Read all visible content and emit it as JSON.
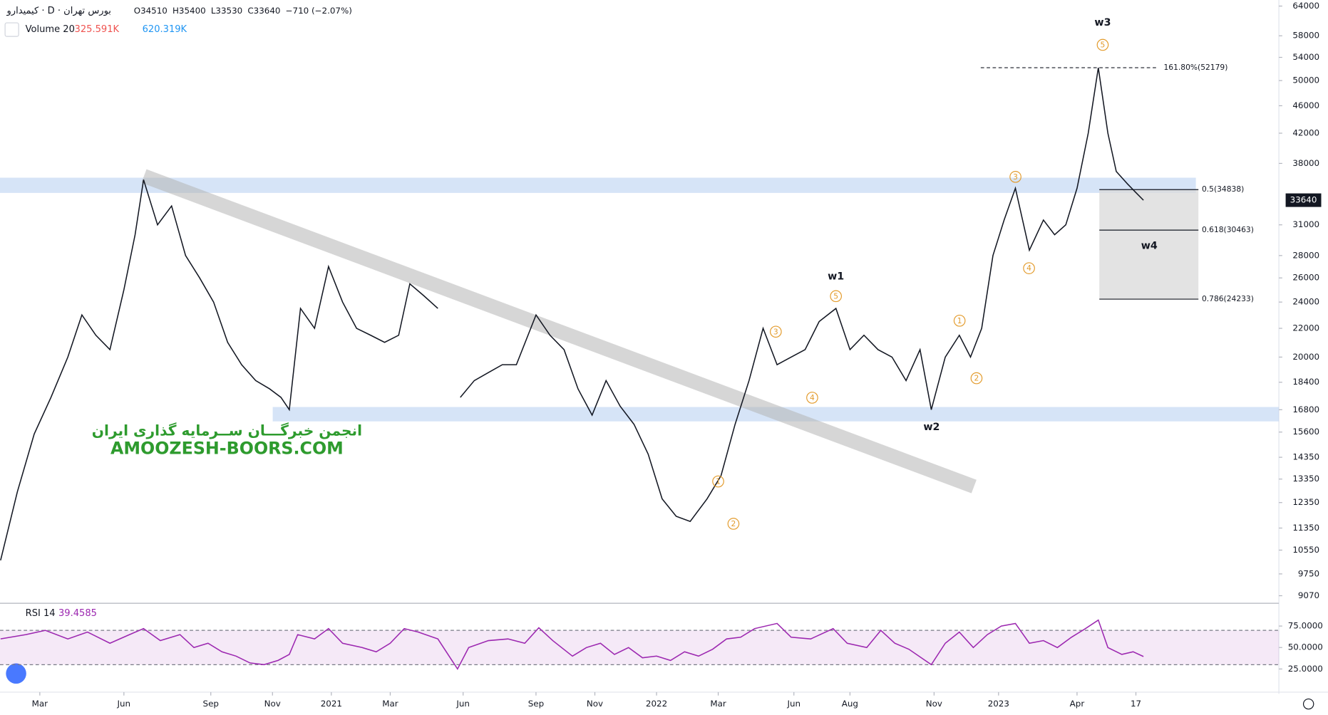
{
  "header": {
    "symbol": "کیمیدارو · D · بورس تهران",
    "ohlc": [
      "O34510",
      "H35400",
      "L33530",
      "C33640",
      "−710 (−2.07%)"
    ],
    "volume_label": "Volume 20",
    "volume_values": [
      "325.591K",
      "620.319K"
    ],
    "watermark": [
      "انجمن خبرگـــان ســرمایه گذاری ایران",
      "AMOOZESH-BOORS.COM"
    ]
  },
  "chart_data": [
    {
      "type": "line",
      "log_scale": true,
      "color": "#131722",
      "grid": false,
      "x": [
        0.6,
        1.2,
        1.8,
        2.4,
        3.0,
        3.5,
        4.0,
        4.5,
        5.0,
        5.4,
        5.7,
        6.2,
        6.7,
        7.2,
        7.7,
        8.2,
        8.7,
        9.2,
        9.7,
        10.2,
        10.6,
        10.9,
        11.3,
        11.8,
        12.3,
        12.8,
        13.3,
        13.8,
        14.3,
        14.8,
        15.2,
        15.7,
        16.2,
        16.6,
        17.0,
        17.5,
        18.0,
        18.5,
        19.0,
        19.7,
        20.2,
        20.7,
        21.2,
        21.7,
        22.2,
        22.7,
        23.2,
        23.7,
        24.2,
        24.7,
        25.2,
        25.8,
        26.3,
        26.8,
        27.3,
        27.8,
        28.3,
        28.8,
        29.3,
        29.8,
        30.4,
        30.9,
        31.4,
        31.9,
        32.4,
        32.9,
        33.4,
        33.8,
        34.3,
        34.8,
        35.2,
        35.6,
        36.0,
        36.4,
        36.8,
        37.3,
        37.8,
        38.2,
        38.6,
        39.0,
        39.4,
        39.76,
        40.1,
        40.4,
        40.8,
        41.1,
        41.37
      ],
      "values": [
        10200,
        12800,
        15500,
        17500,
        20000,
        23000,
        21500,
        20500,
        25000,
        30000,
        36000,
        31000,
        33000,
        28000,
        26000,
        24000,
        21000,
        19500,
        18500,
        18000,
        17500,
        16800,
        23500,
        22000,
        27000,
        24000,
        22000,
        21500,
        21000,
        21500,
        25500,
        24500,
        23500,
        null,
        17500,
        18500,
        19000,
        19500,
        19500,
        23000,
        21500,
        20500,
        18000,
        16500,
        18500,
        17000,
        16000,
        14500,
        12500,
        11800,
        11600,
        12500,
        13500,
        16000,
        18500,
        22000,
        19500,
        20000,
        20500,
        22500,
        23500,
        20500,
        21500,
        20500,
        20000,
        18500,
        20500,
        16800,
        20000,
        21500,
        20000,
        22000,
        28000,
        31500,
        35000,
        28500,
        31500,
        30000,
        31000,
        35000,
        42000,
        52179,
        42000,
        37000,
        35500,
        34500,
        33640
      ],
      "last_price": 33640,
      "xlim": [
        0.58,
        46.2
      ],
      "ylim": [
        8870,
        65300
      ],
      "yticks": [
        64000,
        58000,
        54000,
        50000,
        46000,
        42000,
        38000,
        31000,
        28000,
        26000,
        24000,
        22000,
        20000,
        18400,
        16800,
        15600,
        14350,
        13350,
        12350,
        11350,
        10550,
        9750,
        9070
      ],
      "xticks": [
        {
          "value": 2.0,
          "label": "Mar"
        },
        {
          "value": 5.0,
          "label": "Jun"
        },
        {
          "value": 8.1,
          "label": "Sep"
        },
        {
          "value": 10.3,
          "label": "Nov"
        },
        {
          "value": 12.4,
          "label": "2021"
        },
        {
          "value": 14.5,
          "label": "Mar"
        },
        {
          "value": 17.1,
          "label": "Jun"
        },
        {
          "value": 19.7,
          "label": "Sep"
        },
        {
          "value": 21.8,
          "label": "Nov"
        },
        {
          "value": 24.0,
          "label": "2022"
        },
        {
          "value": 26.2,
          "label": "Mar"
        },
        {
          "value": 28.9,
          "label": "Jun"
        },
        {
          "value": 30.9,
          "label": "Aug"
        },
        {
          "value": 33.9,
          "label": "Nov"
        },
        {
          "value": 36.2,
          "label": "2023"
        },
        {
          "value": 39.0,
          "label": "Apr"
        },
        {
          "value": 41.1,
          "label": "17"
        }
      ],
      "fib_levels": [
        {
          "value": 52179,
          "label": "161.80%(52179)"
        },
        {
          "value": 34838,
          "label": "0.5(34838)"
        },
        {
          "value": 30463,
          "label": "0.618(30463)"
        },
        {
          "value": 24233,
          "label": "0.786(24233)"
        }
      ],
      "annotations": [
        "w3",
        "5",
        "w1",
        "5",
        "3",
        "4",
        "w2",
        "1",
        "2",
        "1",
        "2",
        "3",
        "4",
        "w4"
      ]
    },
    {
      "type": "line",
      "title": "RSI 14",
      "color": "#9c27b0",
      "last_value": 39.4585,
      "x": [
        0.6,
        1.5,
        2.2,
        3.0,
        3.7,
        4.5,
        5.2,
        5.7,
        6.3,
        7.0,
        7.5,
        8.0,
        8.5,
        9.0,
        9.5,
        10.0,
        10.5,
        10.9,
        11.2,
        11.8,
        12.3,
        12.8,
        13.5,
        14.0,
        14.5,
        15.0,
        15.5,
        16.2,
        16.9,
        17.3,
        18.0,
        18.7,
        19.3,
        19.8,
        20.3,
        21.0,
        21.5,
        22.0,
        22.5,
        23.0,
        23.5,
        24.0,
        24.5,
        25.0,
        25.5,
        26.0,
        26.5,
        27.0,
        27.5,
        28.3,
        28.8,
        29.5,
        30.3,
        30.8,
        31.5,
        32.0,
        32.5,
        33.0,
        33.8,
        34.3,
        34.8,
        35.3,
        35.8,
        36.3,
        36.8,
        37.3,
        37.8,
        38.3,
        38.8,
        39.3,
        39.76,
        40.1,
        40.6,
        41.0,
        41.37
      ],
      "values": [
        60,
        65,
        70,
        60,
        68,
        55,
        65,
        72,
        58,
        65,
        50,
        55,
        45,
        40,
        32,
        30,
        35,
        42,
        65,
        60,
        72,
        55,
        50,
        45,
        55,
        72,
        68,
        60,
        25,
        50,
        58,
        60,
        55,
        73,
        58,
        40,
        50,
        55,
        42,
        50,
        38,
        40,
        35,
        45,
        40,
        48,
        60,
        62,
        72,
        78,
        62,
        60,
        72,
        55,
        50,
        70,
        55,
        48,
        30,
        55,
        68,
        50,
        65,
        75,
        78,
        55,
        58,
        50,
        62,
        72,
        82,
        50,
        42,
        45,
        39.4585
      ],
      "xlim": [
        0.58,
        46.2
      ],
      "ylim": [
        0,
        100
      ],
      "yticks": [
        {
          "value": 75,
          "label": "75.0000"
        },
        {
          "value": 50,
          "label": "50.0000"
        },
        {
          "value": 25,
          "label": "25.0000"
        }
      ],
      "band": [
        30,
        70
      ]
    }
  ]
}
